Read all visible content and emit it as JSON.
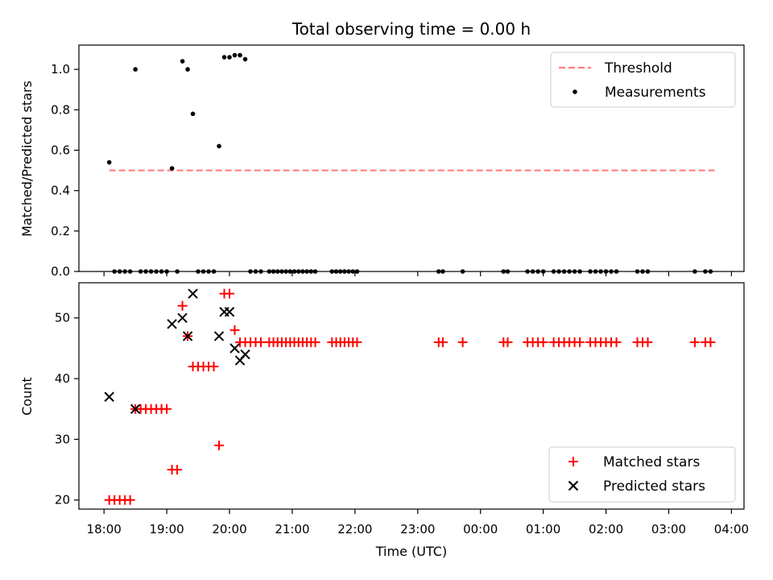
{
  "chart_data": [
    {
      "type": "scatter",
      "title": "Total observing time = 0.00 h",
      "xlabel": "",
      "ylabel": "Matched/Predicted stars",
      "xlim": [
        "17:36",
        "04:12"
      ],
      "ylim": [
        0,
        1.12
      ],
      "yticks": [
        "0.0",
        "0.2",
        "0.4",
        "0.6",
        "0.8",
        "1.0"
      ],
      "ytick_values": [
        0,
        0.2,
        0.4,
        0.6,
        0.8,
        1.0
      ],
      "legend": "top-right",
      "threshold": {
        "name": "Threshold",
        "color": "#ff7f7f",
        "y": 0.5,
        "x": [
          "18:05",
          "03:45"
        ]
      },
      "series": [
        {
          "name": "Measurements",
          "color": "#000000",
          "marker": "dot",
          "points": [
            [
              "18:05",
              0.54
            ],
            [
              "18:10",
              0
            ],
            [
              "18:15",
              0
            ],
            [
              "18:20",
              0
            ],
            [
              "18:25",
              0
            ],
            [
              "18:30",
              1.0
            ],
            [
              "18:35",
              0
            ],
            [
              "18:40",
              0
            ],
            [
              "18:45",
              0
            ],
            [
              "18:50",
              0
            ],
            [
              "18:55",
              0
            ],
            [
              "19:00",
              0
            ],
            [
              "19:05",
              0.51
            ],
            [
              "19:10",
              0
            ],
            [
              "19:15",
              1.04
            ],
            [
              "19:20",
              1.0
            ],
            [
              "19:25",
              0.78
            ],
            [
              "19:30",
              0
            ],
            [
              "19:35",
              0
            ],
            [
              "19:40",
              0
            ],
            [
              "19:45",
              0
            ],
            [
              "19:50",
              0.62
            ],
            [
              "19:55",
              1.06
            ],
            [
              "20:00",
              1.06
            ],
            [
              "20:05",
              1.07
            ],
            [
              "20:10",
              1.07
            ],
            [
              "20:15",
              1.05
            ],
            [
              "20:20",
              0
            ],
            [
              "20:25",
              0
            ],
            [
              "20:30",
              0
            ],
            [
              "20:38",
              0
            ],
            [
              "20:42",
              0
            ],
            [
              "20:46",
              0
            ],
            [
              "20:50",
              0
            ],
            [
              "20:54",
              0
            ],
            [
              "20:58",
              0
            ],
            [
              "21:02",
              0
            ],
            [
              "21:06",
              0
            ],
            [
              "21:10",
              0
            ],
            [
              "21:14",
              0
            ],
            [
              "21:18",
              0
            ],
            [
              "21:22",
              0
            ],
            [
              "21:38",
              0
            ],
            [
              "21:42",
              0
            ],
            [
              "21:46",
              0
            ],
            [
              "21:50",
              0
            ],
            [
              "21:54",
              0
            ],
            [
              "21:58",
              0
            ],
            [
              "22:02",
              0
            ],
            [
              "23:20",
              0
            ],
            [
              "23:24",
              0
            ],
            [
              "23:43",
              0
            ],
            [
              "00:22",
              0
            ],
            [
              "00:26",
              0
            ],
            [
              "00:45",
              0
            ],
            [
              "00:50",
              0
            ],
            [
              "00:55",
              0
            ],
            [
              "01:00",
              0
            ],
            [
              "01:10",
              0
            ],
            [
              "01:15",
              0
            ],
            [
              "01:20",
              0
            ],
            [
              "01:25",
              0
            ],
            [
              "01:30",
              0
            ],
            [
              "01:35",
              0
            ],
            [
              "01:45",
              0
            ],
            [
              "01:50",
              0
            ],
            [
              "01:55",
              0
            ],
            [
              "02:00",
              0
            ],
            [
              "02:05",
              0
            ],
            [
              "02:10",
              0
            ],
            [
              "02:30",
              0
            ],
            [
              "02:35",
              0
            ],
            [
              "02:40",
              0
            ],
            [
              "03:25",
              0
            ],
            [
              "03:35",
              0
            ],
            [
              "03:40",
              0
            ]
          ]
        }
      ]
    },
    {
      "type": "scatter",
      "title": "",
      "xlabel": "Time (UTC)",
      "ylabel": "Count",
      "xlim": [
        "17:36",
        "04:12"
      ],
      "ylim": [
        18.5,
        55.8
      ],
      "yticks": [
        "20",
        "30",
        "40",
        "50"
      ],
      "ytick_values": [
        20,
        30,
        40,
        50
      ],
      "xticks": [
        "18:00",
        "19:00",
        "20:00",
        "21:00",
        "22:00",
        "23:00",
        "00:00",
        "01:00",
        "02:00",
        "03:00",
        "04:00"
      ],
      "legend": "bottom-right",
      "series": [
        {
          "name": "Matched stars",
          "color": "#ff0000",
          "marker": "plus",
          "points": [
            [
              "18:05",
              20
            ],
            [
              "18:10",
              20
            ],
            [
              "18:15",
              20
            ],
            [
              "18:20",
              20
            ],
            [
              "18:25",
              20
            ],
            [
              "18:30",
              35
            ],
            [
              "18:35",
              35
            ],
            [
              "18:40",
              35
            ],
            [
              "18:45",
              35
            ],
            [
              "18:50",
              35
            ],
            [
              "18:55",
              35
            ],
            [
              "19:00",
              35
            ],
            [
              "19:05",
              25
            ],
            [
              "19:10",
              25
            ],
            [
              "19:15",
              52
            ],
            [
              "19:20",
              47
            ],
            [
              "19:25",
              42
            ],
            [
              "19:30",
              42
            ],
            [
              "19:35",
              42
            ],
            [
              "19:40",
              42
            ],
            [
              "19:45",
              42
            ],
            [
              "19:50",
              29
            ],
            [
              "19:55",
              54
            ],
            [
              "20:00",
              54
            ],
            [
              "20:05",
              48
            ],
            [
              "20:10",
              46
            ],
            [
              "20:15",
              46
            ],
            [
              "20:20",
              46
            ],
            [
              "20:25",
              46
            ],
            [
              "20:30",
              46
            ],
            [
              "20:38",
              46
            ],
            [
              "20:42",
              46
            ],
            [
              "20:46",
              46
            ],
            [
              "20:50",
              46
            ],
            [
              "20:54",
              46
            ],
            [
              "20:58",
              46
            ],
            [
              "21:02",
              46
            ],
            [
              "21:06",
              46
            ],
            [
              "21:10",
              46
            ],
            [
              "21:14",
              46
            ],
            [
              "21:18",
              46
            ],
            [
              "21:22",
              46
            ],
            [
              "21:38",
              46
            ],
            [
              "21:42",
              46
            ],
            [
              "21:46",
              46
            ],
            [
              "21:50",
              46
            ],
            [
              "21:54",
              46
            ],
            [
              "21:58",
              46
            ],
            [
              "22:02",
              46
            ],
            [
              "23:20",
              46
            ],
            [
              "23:24",
              46
            ],
            [
              "23:43",
              46
            ],
            [
              "00:22",
              46
            ],
            [
              "00:26",
              46
            ],
            [
              "00:45",
              46
            ],
            [
              "00:50",
              46
            ],
            [
              "00:55",
              46
            ],
            [
              "01:00",
              46
            ],
            [
              "01:10",
              46
            ],
            [
              "01:15",
              46
            ],
            [
              "01:20",
              46
            ],
            [
              "01:25",
              46
            ],
            [
              "01:30",
              46
            ],
            [
              "01:35",
              46
            ],
            [
              "01:45",
              46
            ],
            [
              "01:50",
              46
            ],
            [
              "01:55",
              46
            ],
            [
              "02:00",
              46
            ],
            [
              "02:05",
              46
            ],
            [
              "02:10",
              46
            ],
            [
              "02:30",
              46
            ],
            [
              "02:35",
              46
            ],
            [
              "02:40",
              46
            ],
            [
              "03:25",
              46
            ],
            [
              "03:35",
              46
            ],
            [
              "03:40",
              46
            ]
          ]
        },
        {
          "name": "Predicted stars",
          "color": "#000000",
          "marker": "x",
          "points": [
            [
              "18:05",
              37
            ],
            [
              "18:30",
              35
            ],
            [
              "19:05",
              49
            ],
            [
              "19:15",
              50
            ],
            [
              "19:20",
              47
            ],
            [
              "19:25",
              54
            ],
            [
              "19:50",
              47
            ],
            [
              "19:55",
              51
            ],
            [
              "20:00",
              51
            ],
            [
              "20:05",
              45
            ],
            [
              "20:10",
              43
            ],
            [
              "20:15",
              44
            ]
          ]
        }
      ]
    }
  ]
}
